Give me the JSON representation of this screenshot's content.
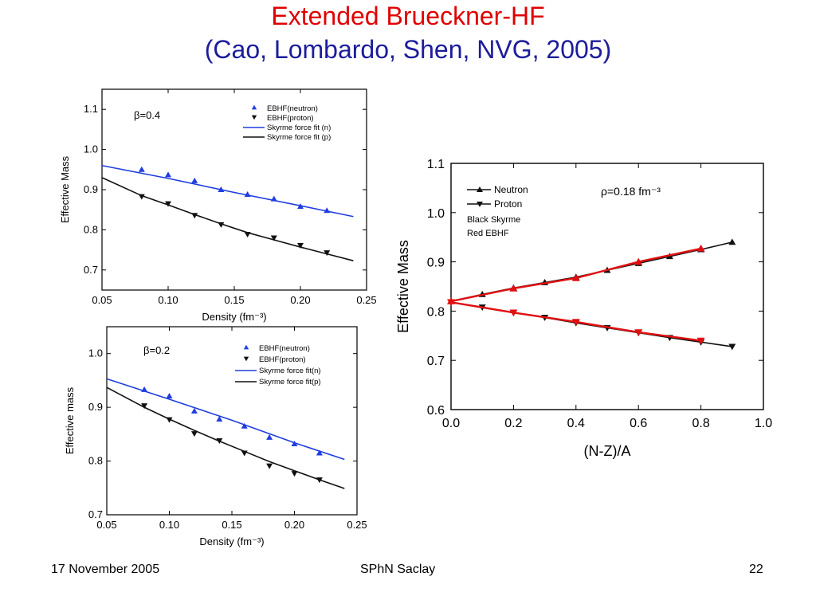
{
  "slide": {
    "title_line1": "Extended Brueckner-HF",
    "title_line2": "(Cao, Lombardo, Shen, NVG, 2005)",
    "footer_left": "17 November 2005",
    "footer_center": "SPhN Saclay",
    "footer_right": "22"
  },
  "chart_data": [
    {
      "type": "scatter",
      "panel_label": "β=0.4",
      "xlabel": "Density (fm⁻³)",
      "ylabel": "Effective Mass",
      "xlim": [
        0.05,
        0.25
      ],
      "ylim": [
        0.65,
        1.15
      ],
      "xticks": [
        0.05,
        0.1,
        0.15,
        0.2,
        0.25
      ],
      "xtick_labels": [
        "0.05",
        "0.10",
        "0.15",
        "0.20",
        "0.25"
      ],
      "yticks": [
        0.7,
        0.8,
        0.9,
        1.0,
        1.1
      ],
      "ytick_labels": [
        "0.7",
        "0.8",
        "0.9",
        "1.0",
        "1.1"
      ],
      "legend": [
        "EBHF(neutron)",
        "EBHF(proton)",
        "Skyrme force fit (n)",
        "Skyrme force fit (p)"
      ],
      "series": [
        {
          "name": "EBHF(neutron)",
          "kind": "points",
          "marker": "triangle-up",
          "color": "#1f3de0",
          "x": [
            0.08,
            0.1,
            0.12,
            0.14,
            0.16,
            0.18,
            0.2,
            0.22
          ],
          "y": [
            0.95,
            0.937,
            0.922,
            0.9,
            0.888,
            0.877,
            0.858,
            0.848
          ]
        },
        {
          "name": "EBHF(proton)",
          "kind": "points",
          "marker": "triangle-down",
          "color": "#111111",
          "x": [
            0.08,
            0.1,
            0.12,
            0.14,
            0.16,
            0.18,
            0.2,
            0.22
          ],
          "y": [
            0.883,
            0.865,
            0.836,
            0.813,
            0.789,
            0.78,
            0.761,
            0.743
          ]
        },
        {
          "name": "Skyrme force fit (n)",
          "kind": "line",
          "color": "#1f3de0",
          "x": [
            0.05,
            0.1,
            0.15,
            0.2,
            0.24
          ],
          "y": [
            0.96,
            0.928,
            0.893,
            0.86,
            0.833
          ]
        },
        {
          "name": "Skyrme force fit (p)",
          "kind": "line",
          "color": "#111111",
          "x": [
            0.05,
            0.08,
            0.1,
            0.12,
            0.14,
            0.16,
            0.18,
            0.2,
            0.22,
            0.24
          ],
          "y": [
            0.93,
            0.885,
            0.862,
            0.838,
            0.815,
            0.793,
            0.775,
            0.757,
            0.74,
            0.723
          ]
        }
      ]
    },
    {
      "type": "scatter",
      "panel_label": "β=0.2",
      "xlabel": "Density (fm⁻³)",
      "ylabel": "Effective mass",
      "xlim": [
        0.05,
        0.25
      ],
      "ylim": [
        0.7,
        1.05
      ],
      "xticks": [
        0.05,
        0.1,
        0.15,
        0.2,
        0.25
      ],
      "xtick_labels": [
        "0.05",
        "0.10",
        "0.15",
        "0.20",
        "0.25"
      ],
      "yticks": [
        0.7,
        0.8,
        0.9,
        1.0
      ],
      "ytick_labels": [
        "0.7",
        "0.8",
        "0.9",
        "1.0"
      ],
      "legend": [
        "EBHF(neutron)",
        "EBHF(proton)",
        "Skyrme force fit(n)",
        "Skyrme force fit(p)"
      ],
      "series": [
        {
          "name": "EBHF(neutron)",
          "kind": "points",
          "marker": "triangle-up",
          "color": "#1f3de0",
          "x": [
            0.08,
            0.1,
            0.12,
            0.14,
            0.16,
            0.18,
            0.2,
            0.22
          ],
          "y": [
            0.933,
            0.921,
            0.893,
            0.878,
            0.865,
            0.844,
            0.832,
            0.815
          ]
        },
        {
          "name": "EBHF(proton)",
          "kind": "points",
          "marker": "triangle-down",
          "color": "#111111",
          "x": [
            0.08,
            0.1,
            0.12,
            0.14,
            0.16,
            0.18,
            0.2,
            0.22
          ],
          "y": [
            0.903,
            0.877,
            0.851,
            0.838,
            0.815,
            0.791,
            0.777,
            0.765
          ]
        },
        {
          "name": "Skyrme force fit(n)",
          "kind": "line",
          "color": "#1f3de0",
          "x": [
            0.05,
            0.1,
            0.15,
            0.2,
            0.24
          ],
          "y": [
            0.953,
            0.915,
            0.876,
            0.834,
            0.803
          ]
        },
        {
          "name": "Skyrme force fit(p)",
          "kind": "line",
          "color": "#111111",
          "x": [
            0.05,
            0.08,
            0.1,
            0.12,
            0.14,
            0.16,
            0.18,
            0.2,
            0.22,
            0.24
          ],
          "y": [
            0.937,
            0.9,
            0.878,
            0.857,
            0.837,
            0.818,
            0.799,
            0.782,
            0.765,
            0.749
          ]
        }
      ]
    },
    {
      "type": "line",
      "panel_label": "ρ=0.18 fm⁻³",
      "xlabel": "(N-Z)/A",
      "ylabel": "Effective Mass",
      "xlim": [
        0.0,
        1.0
      ],
      "ylim": [
        0.6,
        1.1
      ],
      "xticks": [
        0.0,
        0.2,
        0.4,
        0.6,
        0.8,
        1.0
      ],
      "xtick_labels": [
        "0.0",
        "0.2",
        "0.4",
        "0.6",
        "0.8",
        "1.0"
      ],
      "yticks": [
        0.6,
        0.7,
        0.8,
        0.9,
        1.0,
        1.1
      ],
      "ytick_labels": [
        "0.6",
        "0.7",
        "0.8",
        "0.9",
        "1.0",
        "1.1"
      ],
      "legend": [
        "Neutron",
        "Proton",
        "Black Skyrme",
        "Red   EBHF"
      ],
      "series": [
        {
          "name": "Neutron",
          "subset": "Skyrme",
          "marker": "triangle-up",
          "color": "#111111",
          "x": [
            0.0,
            0.1,
            0.2,
            0.3,
            0.4,
            0.5,
            0.6,
            0.7,
            0.8,
            0.9
          ],
          "y": [
            0.82,
            0.834,
            0.847,
            0.858,
            0.869,
            0.883,
            0.897,
            0.911,
            0.925,
            0.94
          ]
        },
        {
          "name": "Proton",
          "subset": "Skyrme",
          "marker": "triangle-down",
          "color": "#111111",
          "x": [
            0.0,
            0.1,
            0.2,
            0.3,
            0.4,
            0.5,
            0.6,
            0.7,
            0.8,
            0.9
          ],
          "y": [
            0.818,
            0.808,
            0.797,
            0.787,
            0.776,
            0.766,
            0.756,
            0.746,
            0.737,
            0.728
          ]
        },
        {
          "name": "Neutron",
          "subset": "EBHF",
          "marker": "triangle-up",
          "color": "#e01010",
          "x": [
            0.0,
            0.2,
            0.4,
            0.6,
            0.8
          ],
          "y": [
            0.82,
            0.846,
            0.867,
            0.9,
            0.927
          ]
        },
        {
          "name": "Proton",
          "subset": "EBHF",
          "marker": "triangle-down",
          "color": "#e01010",
          "x": [
            0.0,
            0.2,
            0.4,
            0.6,
            0.8
          ],
          "y": [
            0.818,
            0.797,
            0.778,
            0.757,
            0.74
          ]
        }
      ]
    }
  ]
}
